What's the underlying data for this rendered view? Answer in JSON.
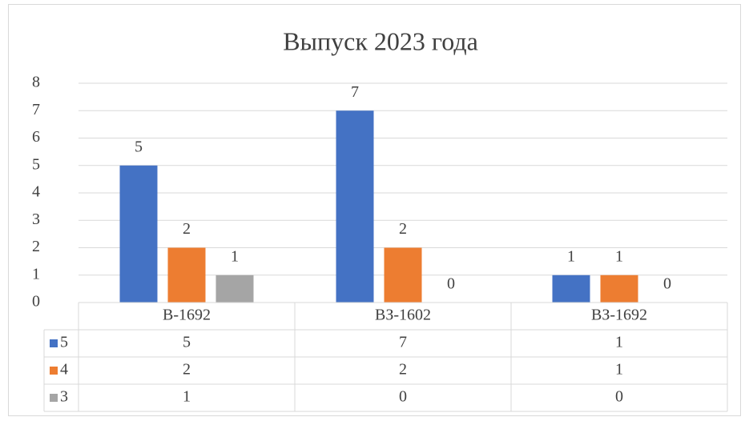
{
  "chart_data": {
    "type": "bar",
    "title": "Выпуск 2023 года",
    "categories": [
      "В-1692",
      "ВЗ-1602",
      "ВЗ-1692"
    ],
    "series": [
      {
        "name": "5",
        "color": "#4472c4",
        "values": [
          5,
          7,
          1
        ]
      },
      {
        "name": "4",
        "color": "#ed7d31",
        "values": [
          2,
          2,
          1
        ]
      },
      {
        "name": "3",
        "color": "#a5a5a5",
        "values": [
          1,
          0,
          0
        ]
      }
    ],
    "ylim": [
      0,
      8
    ],
    "yticks": [
      0,
      1,
      2,
      3,
      4,
      5,
      6,
      7,
      8
    ],
    "grid": true,
    "data_table": true
  }
}
